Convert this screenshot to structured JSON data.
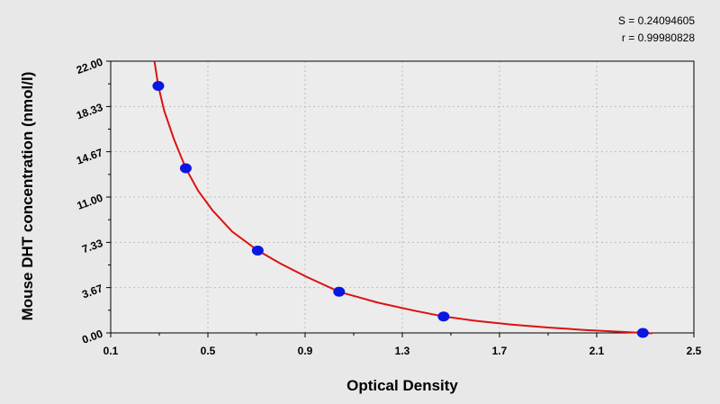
{
  "stats": {
    "s_text": "S = 0.24094605",
    "r_text": "r = 0.99980828"
  },
  "chart_data": {
    "type": "scatter",
    "title": "",
    "xlabel": "Optical Density",
    "ylabel": "Mouse DHT concentration (nmol/l)",
    "xlim": [
      0.1,
      2.5
    ],
    "ylim": [
      0,
      22
    ],
    "x_ticks": [
      "0.1",
      "0.5",
      "0.9",
      "1.3",
      "1.7",
      "2.1",
      "2.5"
    ],
    "y_ticks": [
      "0.00",
      "3.67",
      "7.33",
      "11.00",
      "14.67",
      "18.33",
      "22.00"
    ],
    "grid": true,
    "points": {
      "x": [
        0.296,
        0.409,
        0.705,
        1.04,
        1.47,
        2.29
      ],
      "y": [
        20.0,
        13.33,
        6.67,
        3.33,
        1.33,
        0.0
      ]
    },
    "fit_curve": {
      "x": [
        0.28,
        0.296,
        0.32,
        0.36,
        0.409,
        0.46,
        0.52,
        0.6,
        0.705,
        0.8,
        0.9,
        1.04,
        1.2,
        1.35,
        1.47,
        1.6,
        1.75,
        1.9,
        2.05,
        2.2,
        2.29,
        2.33
      ],
      "y": [
        22.0,
        20.0,
        18.0,
        15.7,
        13.33,
        11.5,
        9.9,
        8.2,
        6.67,
        5.6,
        4.6,
        3.33,
        2.45,
        1.8,
        1.33,
        0.98,
        0.68,
        0.44,
        0.24,
        0.09,
        0.0,
        -0.03
      ]
    },
    "colors": {
      "point": "#0a17e0",
      "curve": "#dd1111",
      "grid": "#bdbdbd",
      "plot_background": "#ececec"
    }
  }
}
